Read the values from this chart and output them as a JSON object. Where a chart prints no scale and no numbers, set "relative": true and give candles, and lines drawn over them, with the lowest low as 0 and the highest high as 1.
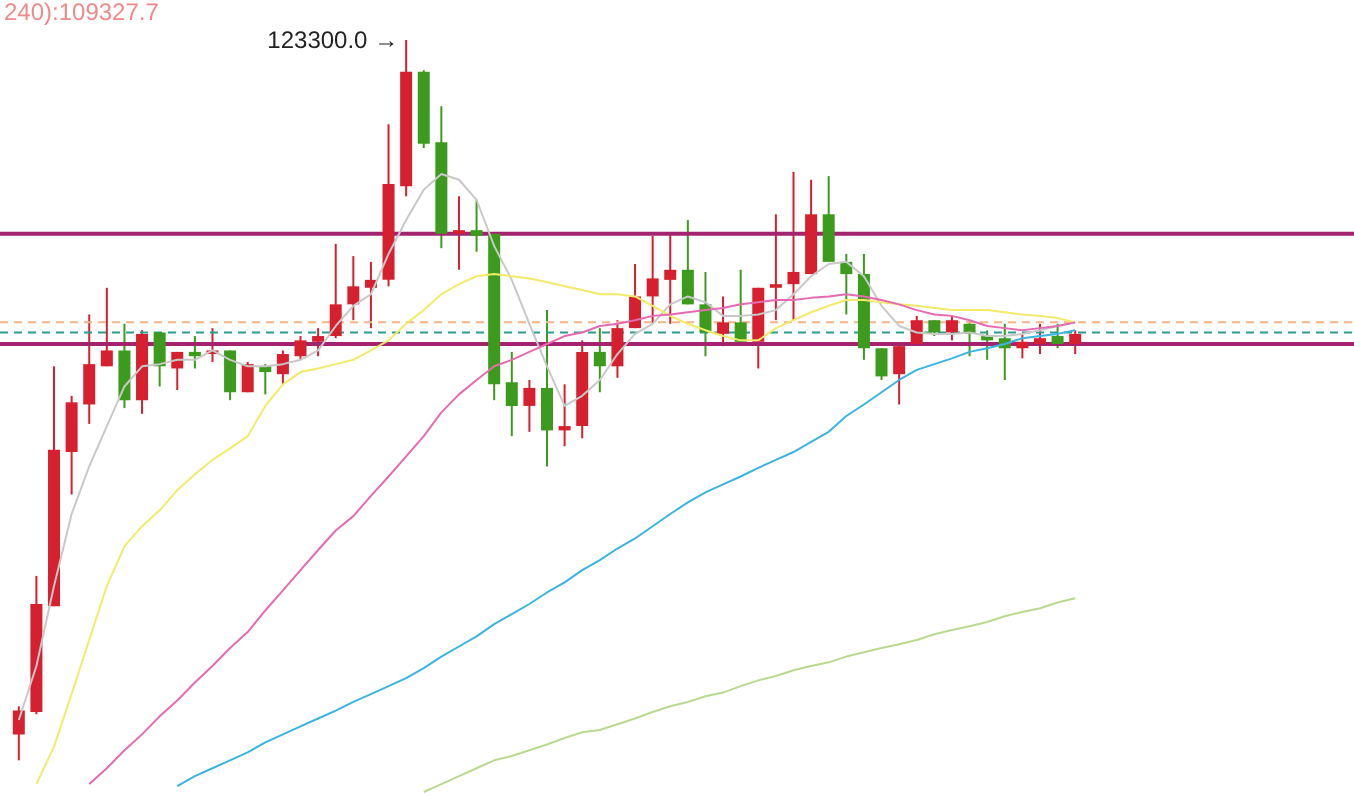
{
  "chart_data": {
    "type": "candlestick",
    "relative": true,
    "categories": [
      null,
      null,
      null,
      null,
      null,
      null,
      null,
      null,
      null,
      null,
      null,
      null,
      null,
      null,
      null,
      null,
      null,
      null,
      null,
      null,
      null,
      null,
      null,
      null,
      null,
      null,
      null,
      null,
      null,
      null,
      null,
      null,
      null,
      null,
      null,
      null,
      null,
      null,
      null,
      null,
      null,
      null,
      null,
      null,
      null,
      null,
      null,
      null,
      null,
      null,
      null,
      null,
      null,
      null,
      null,
      null,
      null,
      null,
      null,
      null,
      null
    ],
    "ohlc": [
      [
        0.036,
        0.075,
        0,
        0.069
      ],
      [
        0.067,
        0.256,
        0.064,
        0.217
      ],
      [
        0.214,
        0.547,
        0.214,
        0.431
      ],
      [
        0.428,
        0.506,
        0.369,
        0.497
      ],
      [
        0.494,
        0.619,
        0.467,
        0.55
      ],
      [
        0.547,
        0.656,
        0.547,
        0.569
      ],
      [
        0.569,
        0.606,
        0.489,
        0.5
      ],
      [
        0.5,
        0.597,
        0.481,
        0.592
      ],
      [
        0.594,
        0.594,
        0.519,
        0.547
      ],
      [
        0.544,
        0.567,
        0.514,
        0.567
      ],
      [
        0.567,
        0.589,
        0.544,
        0.561
      ],
      [
        0.564,
        0.6,
        0.553,
        0.569
      ],
      [
        0.569,
        0.569,
        0.5,
        0.511
      ],
      [
        0.511,
        0.553,
        0.511,
        0.55
      ],
      [
        0.547,
        0.55,
        0.508,
        0.539
      ],
      [
        0.536,
        0.569,
        0.522,
        0.564
      ],
      [
        0.561,
        0.589,
        0.556,
        0.583
      ],
      [
        0.581,
        0.6,
        0.561,
        0.589
      ],
      [
        0.589,
        0.717,
        0.586,
        0.633
      ],
      [
        0.633,
        0.7,
        0.611,
        0.658
      ],
      [
        0.656,
        0.692,
        0.6,
        0.667
      ],
      [
        0.667,
        0.883,
        0.658,
        0.8
      ],
      [
        0.797,
        1,
        0.783,
        0.956
      ],
      [
        0.956,
        0.958,
        0.85,
        0.856
      ],
      [
        0.858,
        0.908,
        0.711,
        0.731
      ],
      [
        0.731,
        0.783,
        0.681,
        0.736
      ],
      [
        0.736,
        0.778,
        0.706,
        0.728
      ],
      [
        0.731,
        0.731,
        0.5,
        0.522
      ],
      [
        0.525,
        0.567,
        0.45,
        0.492
      ],
      [
        0.492,
        0.528,
        0.456,
        0.517
      ],
      [
        0.517,
        0.625,
        0.408,
        0.458
      ],
      [
        0.458,
        0.522,
        0.436,
        0.464
      ],
      [
        0.464,
        0.583,
        0.447,
        0.567
      ],
      [
        0.567,
        0.6,
        0.511,
        0.547
      ],
      [
        0.547,
        0.611,
        0.531,
        0.6
      ],
      [
        0.6,
        0.689,
        0.6,
        0.644
      ],
      [
        0.644,
        0.728,
        0.606,
        0.669
      ],
      [
        0.667,
        0.733,
        0.606,
        0.681
      ],
      [
        0.681,
        0.75,
        0.633,
        0.633
      ],
      [
        0.633,
        0.678,
        0.561,
        0.594
      ],
      [
        0.592,
        0.644,
        0.575,
        0.608
      ],
      [
        0.608,
        0.681,
        0.578,
        0.581
      ],
      [
        0.581,
        0.656,
        0.544,
        0.656
      ],
      [
        0.656,
        0.758,
        0.611,
        0.661
      ],
      [
        0.661,
        0.817,
        0.611,
        0.678
      ],
      [
        0.675,
        0.806,
        0.675,
        0.758
      ],
      [
        0.758,
        0.811,
        0.692,
        0.692
      ],
      [
        0.692,
        0.703,
        0.619,
        0.675
      ],
      [
        0.675,
        0.703,
        0.556,
        0.572
      ],
      [
        0.572,
        0.572,
        0.528,
        0.533
      ],
      [
        0.536,
        0.575,
        0.494,
        0.575
      ],
      [
        0.578,
        0.617,
        0.578,
        0.611
      ],
      [
        0.611,
        0.611,
        0.589,
        0.594
      ],
      [
        0.594,
        0.617,
        0.583,
        0.611
      ],
      [
        0.606,
        0.611,
        0.561,
        0.592
      ],
      [
        0.589,
        0.597,
        0.556,
        0.583
      ],
      [
        0.586,
        0.606,
        0.528,
        0.572
      ],
      [
        0.572,
        0.592,
        0.558,
        0.581
      ],
      [
        0.578,
        0.606,
        0.564,
        0.586
      ],
      [
        0.589,
        0.606,
        0.572,
        0.578
      ],
      [
        0.578,
        0.597,
        0.564,
        0.592
      ]
    ],
    "colors": [
      "#d6202f",
      "#d6202f",
      "#d6202f",
      "#d6202f",
      "#d6202f",
      "#d6202f",
      "#3c9a1c",
      "#d6202f",
      "#3c9a1c",
      "#d6202f",
      "#3c9a1c",
      "#d6202f",
      "#3c9a1c",
      "#d6202f",
      "#3c9a1c",
      "#d6202f",
      "#d6202f",
      "#d6202f",
      "#d6202f",
      "#d6202f",
      "#d6202f",
      "#d6202f",
      "#d6202f",
      "#3c9a1c",
      "#3c9a1c",
      "#d6202f",
      "#3c9a1c",
      "#3c9a1c",
      "#3c9a1c",
      "#d6202f",
      "#3c9a1c",
      "#d6202f",
      "#d6202f",
      "#3c9a1c",
      "#d6202f",
      "#d6202f",
      "#d6202f",
      "#d6202f",
      "#3c9a1c",
      "#3c9a1c",
      "#d6202f",
      "#3c9a1c",
      "#d6202f",
      "#d6202f",
      "#d6202f",
      "#d6202f",
      "#3c9a1c",
      "#3c9a1c",
      "#3c9a1c",
      "#3c9a1c",
      "#d6202f",
      "#d6202f",
      "#3c9a1c",
      "#d6202f",
      "#3c9a1c",
      "#3c9a1c",
      "#3c9a1c",
      "#d6202f",
      "#d6202f",
      "#3c9a1c",
      "#d6202f"
    ],
    "series": [
      {
        "type": "line",
        "color": "#c8c8c8",
        "values": [
          0.056,
          0.131,
          0.242,
          0.342,
          0.408,
          0.464,
          0.519,
          0.547,
          0.55,
          0.556,
          0.556,
          0.569,
          0.556,
          0.547,
          0.547,
          0.55,
          0.556,
          0.569,
          0.603,
          0.631,
          0.647,
          0.703,
          0.75,
          0.792,
          0.814,
          0.806,
          0.778,
          0.714,
          0.667,
          0.606,
          0.547,
          0.492,
          0.506,
          0.528,
          0.564,
          0.592,
          0.606,
          0.633,
          0.644,
          0.636,
          0.617,
          0.617,
          0.619,
          0.625,
          0.647,
          0.672,
          0.689,
          0.692,
          0.672,
          0.631,
          0.603,
          0.594,
          0.592,
          0.592,
          0.594,
          0.589,
          0.589,
          0.592,
          0.597,
          0.603,
          0.608
        ]
      },
      {
        "type": "line",
        "color": "#f3ea6a",
        "values": [
          null,
          -0.033,
          0.019,
          0.092,
          0.167,
          0.242,
          0.297,
          0.325,
          0.347,
          0.375,
          0.397,
          0.417,
          0.433,
          0.45,
          0.492,
          0.522,
          0.539,
          0.544,
          0.55,
          0.556,
          0.569,
          0.583,
          0.606,
          0.625,
          0.647,
          0.661,
          0.672,
          0.675,
          0.672,
          0.669,
          0.664,
          0.658,
          0.653,
          0.647,
          0.647,
          0.644,
          0.631,
          0.617,
          0.606,
          0.597,
          0.589,
          0.583,
          0.583,
          0.6,
          0.611,
          0.622,
          0.631,
          0.639,
          0.639,
          0.636,
          0.633,
          0.631,
          0.628,
          0.625,
          0.625,
          0.625,
          0.622,
          0.619,
          0.617,
          0.614,
          0.608
        ]
      },
      {
        "type": "line",
        "color": "#e66bb0",
        "values": [
          null,
          null,
          null,
          null,
          -0.033,
          -0.011,
          0.014,
          0.036,
          0.061,
          0.083,
          0.108,
          0.131,
          0.156,
          0.178,
          0.208,
          0.236,
          0.264,
          0.292,
          0.319,
          0.339,
          0.367,
          0.394,
          0.422,
          0.45,
          0.483,
          0.508,
          0.528,
          0.547,
          0.556,
          0.567,
          0.578,
          0.589,
          0.594,
          0.603,
          0.606,
          0.611,
          0.617,
          0.619,
          0.622,
          0.625,
          0.628,
          0.633,
          0.636,
          0.639,
          0.639,
          0.642,
          0.644,
          0.647,
          0.644,
          0.639,
          0.633,
          0.625,
          0.619,
          0.617,
          0.611,
          0.603,
          0.6,
          0.597,
          0.6,
          0.603,
          0.608
        ]
      },
      {
        "type": "line",
        "color": "#3cb4e0",
        "values": [
          null,
          null,
          null,
          null,
          null,
          null,
          null,
          null,
          null,
          -0.036,
          -0.022,
          -0.011,
          0,
          0.011,
          0.025,
          0.036,
          0.047,
          0.058,
          0.069,
          0.081,
          0.092,
          0.103,
          0.114,
          0.128,
          0.144,
          0.158,
          0.172,
          0.189,
          0.203,
          0.217,
          0.233,
          0.247,
          0.264,
          0.278,
          0.294,
          0.308,
          0.325,
          0.342,
          0.358,
          0.372,
          0.383,
          0.394,
          0.406,
          0.417,
          0.428,
          0.442,
          0.456,
          0.478,
          0.494,
          0.511,
          0.528,
          0.542,
          0.55,
          0.558,
          0.567,
          0.572,
          0.578,
          0.586,
          0.589,
          0.592,
          0.597
        ]
      },
      {
        "type": "line",
        "color": "#b8da8e",
        "values": [
          null,
          null,
          null,
          null,
          null,
          null,
          null,
          null,
          null,
          null,
          null,
          null,
          null,
          null,
          null,
          null,
          null,
          null,
          null,
          null,
          null,
          null,
          null,
          -0.044,
          -0.033,
          -0.022,
          -0.011,
          0,
          0.006,
          0.014,
          0.022,
          0.031,
          0.039,
          0.042,
          0.05,
          0.058,
          0.067,
          0.075,
          0.081,
          0.089,
          0.094,
          0.103,
          0.111,
          0.117,
          0.125,
          0.131,
          0.136,
          0.144,
          0.15,
          0.156,
          0.161,
          0.167,
          0.175,
          0.181,
          0.186,
          0.192,
          0.2,
          0.206,
          0.211,
          0.219,
          0.225
        ]
      }
    ],
    "ref_lines": [
      {
        "axis": "y",
        "value": 0.731,
        "color": "#a3236f",
        "line_style": "solid"
      },
      {
        "axis": "y",
        "value": 0.578,
        "color": "#a3236f",
        "line_style": "solid"
      },
      {
        "axis": "y",
        "value": 0.608,
        "color": "#f5b48a",
        "line_style": "dashed"
      },
      {
        "axis": "y",
        "value": 0.594,
        "color": "#2a9d8f",
        "line_style": "dashed"
      }
    ],
    "annotations": [
      "123300.0 →",
      "240):109327.7"
    ]
  }
}
